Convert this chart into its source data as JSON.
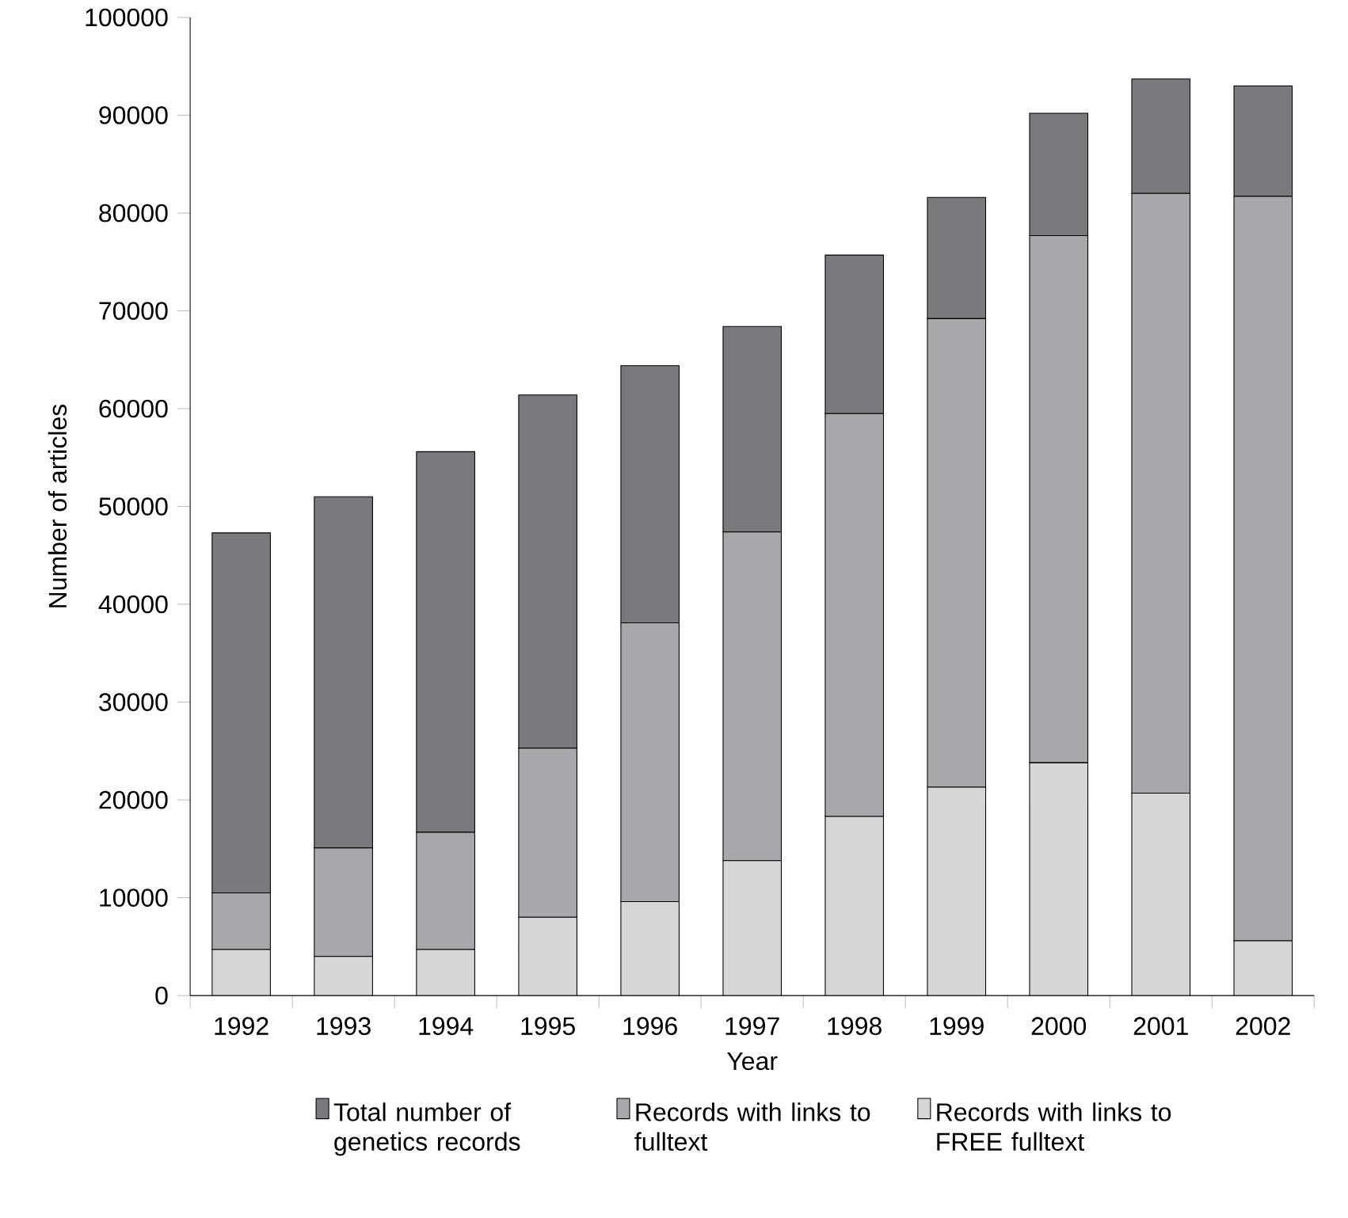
{
  "chart_data": {
    "type": "bar",
    "stacked": true,
    "xlabel": "Year",
    "ylabel": "Number of articles",
    "categories": [
      "1992",
      "1993",
      "1994",
      "1995",
      "1996",
      "1997",
      "1998",
      "1999",
      "2000",
      "2001",
      "2002"
    ],
    "series": [
      {
        "name": "Records with links to FREE fulltext",
        "color": "#d5d6d8",
        "values": [
          4700,
          4000,
          4700,
          8000,
          9600,
          13800,
          18300,
          21300,
          23800,
          20700,
          5600
        ]
      },
      {
        "name": "Records with links to fulltext",
        "color": "#a7a8ab",
        "values": [
          5800,
          11100,
          12000,
          17300,
          28500,
          33600,
          41200,
          47900,
          53900,
          61300,
          76100
        ]
      },
      {
        "name": "Total number of genetics records",
        "color": "#7a7a7e",
        "values": [
          36800,
          35900,
          38900,
          36100,
          26300,
          21000,
          16200,
          12400,
          12500,
          11700,
          11300
        ]
      }
    ],
    "ylim": [
      0,
      100000
    ],
    "yticks": [
      0,
      10000,
      20000,
      30000,
      40000,
      50000,
      60000,
      70000,
      80000,
      90000,
      100000
    ],
    "legend": "bottom"
  }
}
